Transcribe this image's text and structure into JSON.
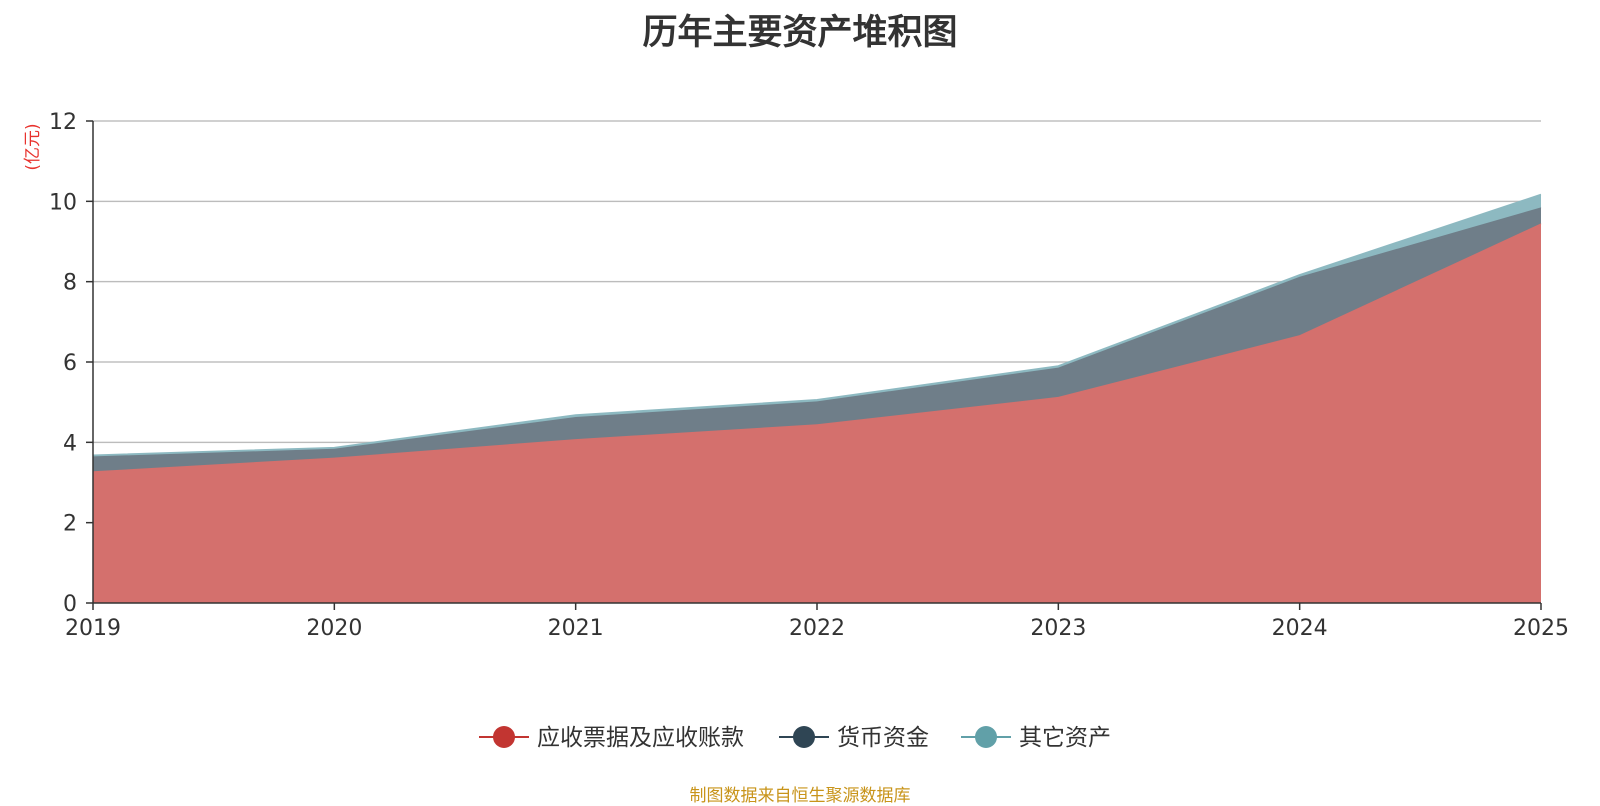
{
  "title": "历年主要资产堆积图",
  "source": "制图数据来自恒生聚源数据库",
  "chart_data": {
    "type": "area",
    "stacked": true,
    "title": "历年主要资产堆积图",
    "unit_label": "(亿元)",
    "unit_color": "#e8322d",
    "x": [
      "2019",
      "2020",
      "2021",
      "2022",
      "2023",
      "2024",
      "2025"
    ],
    "ylim": [
      0,
      12
    ],
    "yticks": [
      0,
      2,
      4,
      6,
      8,
      10,
      12
    ],
    "grid": true,
    "legend_position": "bottom-center",
    "series": [
      {
        "name": "应收票据及应收账款",
        "color": "#c23531",
        "fill": "#d4706d",
        "values": [
          3.28,
          3.62,
          4.08,
          4.45,
          5.13,
          6.67,
          9.45
        ]
      },
      {
        "name": "货币资金",
        "color": "#2f4554",
        "fill": "#6f7e89",
        "values": [
          0.37,
          0.22,
          0.55,
          0.57,
          0.73,
          1.45,
          0.4
        ]
      },
      {
        "name": "其它资产",
        "color": "#61a0a8",
        "fill": "#8db9c1",
        "values": [
          0.03,
          0.03,
          0.05,
          0.04,
          0.04,
          0.05,
          0.32
        ]
      }
    ]
  }
}
